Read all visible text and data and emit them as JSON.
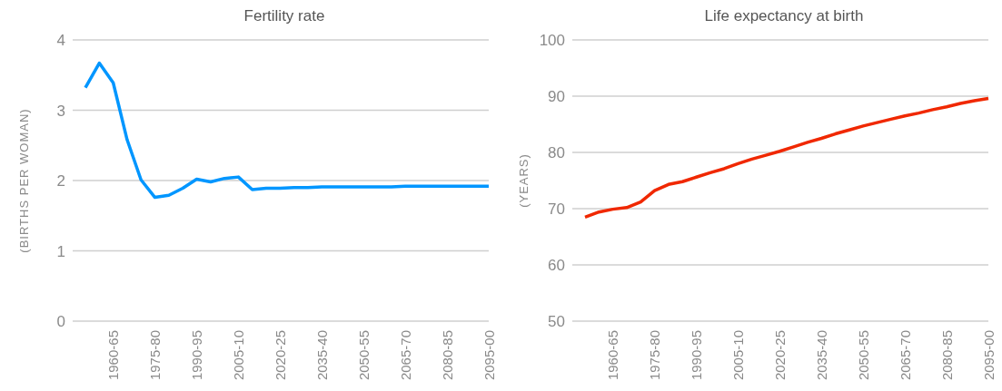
{
  "chart_data": [
    {
      "type": "line",
      "title": "Fertility rate",
      "ylabel": "(BIRTHS PER WOMAN)",
      "categories": [
        null,
        null,
        "1960-65",
        null,
        null,
        "1975-80",
        null,
        null,
        "1990-95",
        null,
        null,
        "2005-10",
        null,
        null,
        "2020-25",
        null,
        null,
        "2035-40",
        null,
        null,
        "2050-55",
        null,
        null,
        "2065-70",
        null,
        null,
        "2080-85",
        null,
        null,
        "2095-00"
      ],
      "series": [
        {
          "color": "#0096ff",
          "values": [
            3.32,
            3.67,
            3.39,
            2.58,
            2.01,
            1.76,
            1.79,
            1.89,
            2.02,
            1.98,
            2.03,
            2.05,
            1.87,
            1.89,
            1.89,
            1.9,
            1.9,
            1.91,
            1.91,
            1.91,
            1.91,
            1.91,
            1.91,
            1.92,
            1.92,
            1.92,
            1.92,
            1.92,
            1.92,
            1.92
          ]
        }
      ],
      "ylim": [
        0,
        4
      ],
      "yticks": [
        0,
        1,
        2,
        3,
        4
      ],
      "grid": "y",
      "legend": false,
      "marker": "none",
      "line_style": "solid"
    },
    {
      "type": "line",
      "title": "Life expectancy at birth",
      "ylabel": "(YEARS)",
      "categories": [
        null,
        null,
        "1960-65",
        null,
        null,
        "1975-80",
        null,
        null,
        "1990-95",
        null,
        null,
        "2005-10",
        null,
        null,
        "2020-25",
        null,
        null,
        "2035-40",
        null,
        null,
        "2050-55",
        null,
        null,
        "2065-70",
        null,
        null,
        "2080-85",
        null,
        null,
        "2095-00"
      ],
      "series": [
        {
          "color": "#f02800",
          "values": [
            68.5,
            69.4,
            69.9,
            70.2,
            71.2,
            73.2,
            74.3,
            74.8,
            75.6,
            76.4,
            77.1,
            78.0,
            78.8,
            79.5,
            80.2,
            81.0,
            81.8,
            82.5,
            83.3,
            84.0,
            84.7,
            85.3,
            85.9,
            86.5,
            87.0,
            87.6,
            88.1,
            88.7,
            89.2,
            89.6
          ]
        }
      ],
      "ylim": [
        50,
        100
      ],
      "yticks": [
        50,
        60,
        70,
        80,
        90,
        100
      ],
      "grid": "y",
      "legend": false,
      "marker": "none",
      "line_style": "solid"
    }
  ]
}
